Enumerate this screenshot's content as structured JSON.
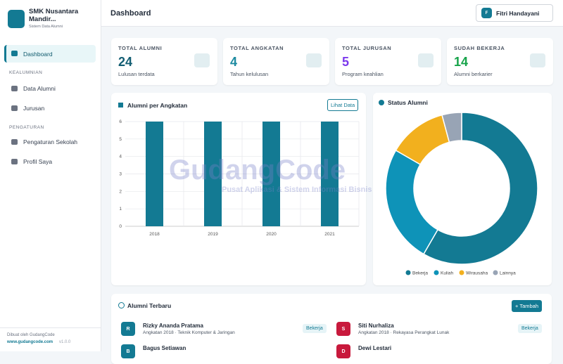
{
  "sidebar": {
    "school": "SMK Nusantara Mandir...",
    "subtitle": "Sistem Data Alumni",
    "active": "Dashboard",
    "sections": [
      {
        "title": "KEALUMNIAN",
        "items": [
          "Data Alumni",
          "Jurusan"
        ]
      },
      {
        "title": "PENGATURAN",
        "items": [
          "Pengaturan Sekolah",
          "Profil Saya"
        ]
      }
    ],
    "footer": {
      "credit": "Dibuat oleh GudangCode",
      "url": "www.gudangcode.com",
      "version": "v1.0.0"
    }
  },
  "header": {
    "title": "Dashboard",
    "avatar": "F",
    "user": "Fitri Handayani"
  },
  "stats": [
    {
      "label": "TOTAL ALUMNI",
      "value": "24",
      "caption": "Lulusan terdata"
    },
    {
      "label": "TOTAL ANGKATAN",
      "value": "4",
      "caption": "Tahun kelulusan"
    },
    {
      "label": "TOTAL JURUSAN",
      "value": "5",
      "caption": "Program keahlian"
    },
    {
      "label": "SUDAH BEKERJA",
      "value": "14",
      "caption": "Alumni berkarier"
    }
  ],
  "chart_data": [
    {
      "type": "bar",
      "title": "Alumni per Angkatan",
      "categories": [
        "2018",
        "2019",
        "2020",
        "2021"
      ],
      "values": [
        6,
        6,
        6,
        6
      ],
      "color": "#137a93",
      "ylim": [
        0,
        6
      ],
      "yticks": [
        0,
        1,
        2,
        3,
        4,
        5,
        6
      ],
      "grid": true
    },
    {
      "type": "donut",
      "title": "Status Alumni",
      "categories": [
        "Bekerja",
        "Kuliah",
        "Wirausaha",
        "Lainnya"
      ],
      "values": [
        14,
        6,
        3,
        1
      ],
      "colors": [
        "#137a93",
        "#0e93b8",
        "#f2b01e",
        "#98a4b5"
      ]
    }
  ],
  "chart_button": "Lihat Data",
  "watermark": {
    "brand": "GudangCode",
    "tagline": "Pusat Aplikasi & Sistem Informasi Bisnis"
  },
  "recent": {
    "title": "Alumni Terbaru",
    "button": "+ Tambah",
    "rows": [
      {
        "initial": "R",
        "name": "Rizky Ananda Pratama",
        "detail": "Angkatan 2018 · Teknik Komputer & Jaringan",
        "status": "Bekerja"
      },
      {
        "initial": "S",
        "name": "Siti Nurhaliza",
        "detail": "Angkatan 2018 · Rekayasa Perangkat Lunak",
        "status": "Bekerja"
      },
      {
        "initial": "B",
        "name": "Bagus Setiawan"
      },
      {
        "initial": "D",
        "name": "Dewi Lestari"
      }
    ]
  }
}
